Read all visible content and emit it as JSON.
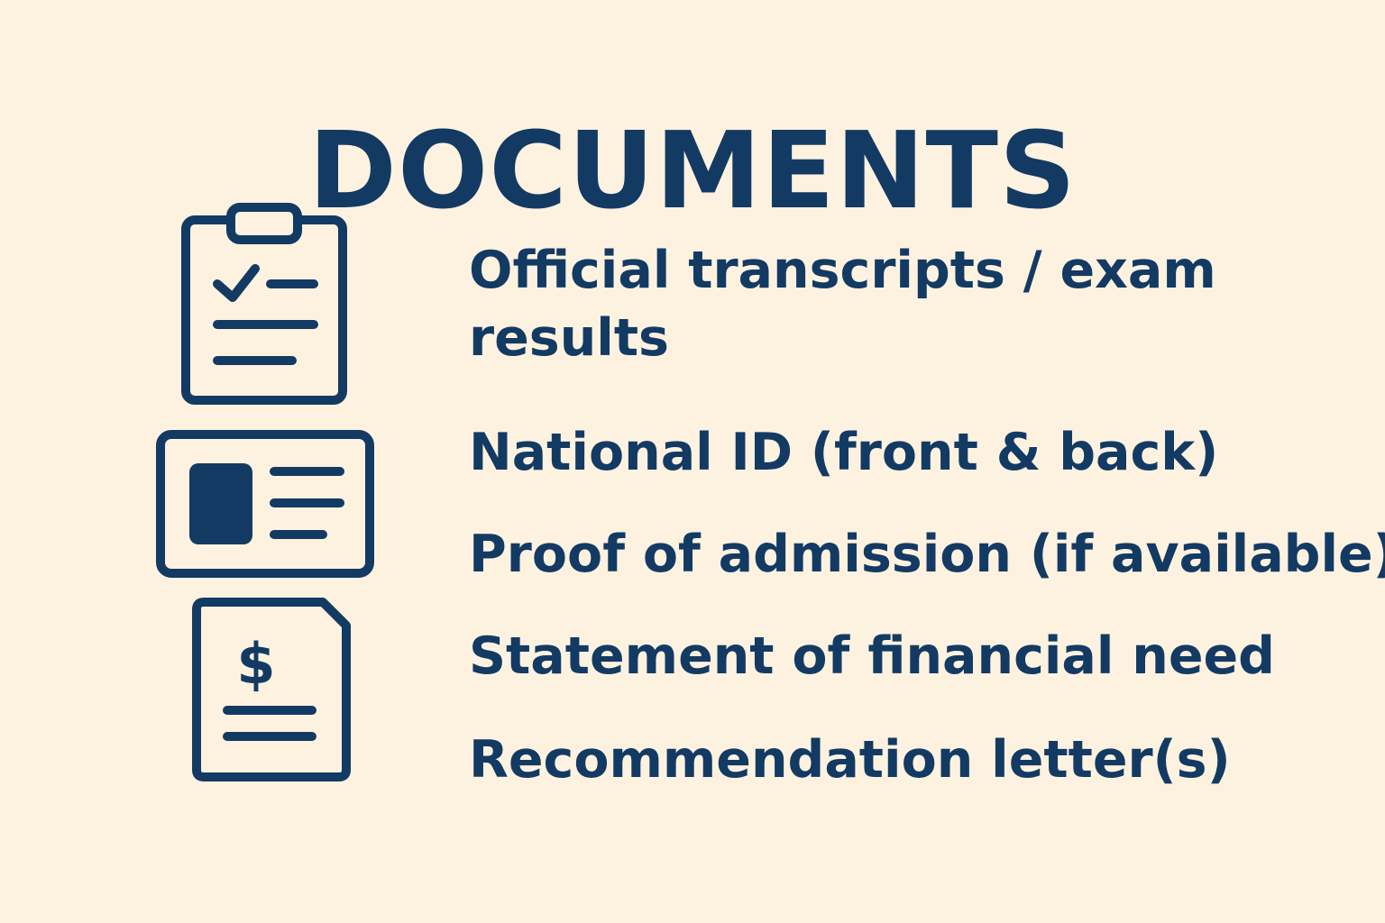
{
  "header": {
    "title": "DOCUMENTS"
  },
  "documents": [
    {
      "icon": "clipboard-checklist-icon",
      "label": "Official transcripts / exam results"
    },
    {
      "icon": "id-card-icon",
      "label": "National ID (front & back)"
    },
    {
      "icon": "id-card-icon",
      "label": "Proof of admission (if available)"
    },
    {
      "icon": "financial-document-dollar-icon",
      "label": "Statement of financial need"
    },
    {
      "icon": "financial-document-dollar-icon",
      "label": "Recommendation letter(s)"
    }
  ],
  "colors": {
    "background": "#FDF2E0",
    "foreground": "#133A63"
  }
}
